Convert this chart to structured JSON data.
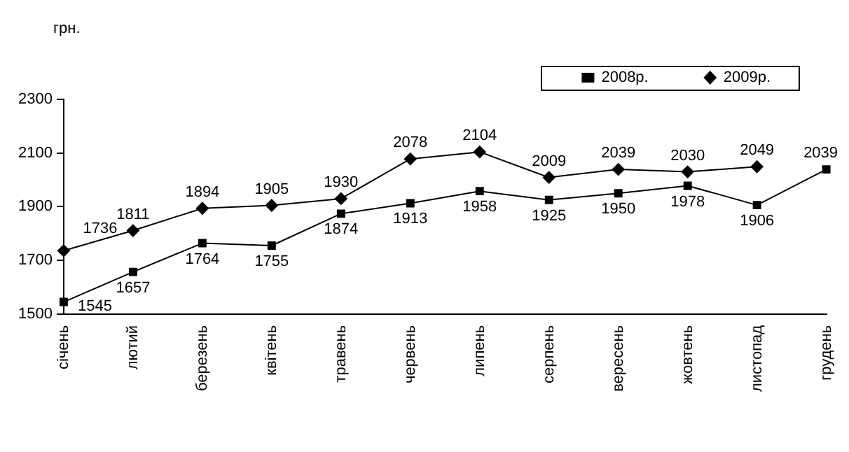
{
  "chart_data": {
    "type": "line",
    "ylabel": "грн.",
    "categories": [
      "січень",
      "лютий",
      "березень",
      "квітень",
      "травень",
      "червень",
      "липень",
      "серпень",
      "вересень",
      "жовтень",
      "листопад",
      "грудень"
    ],
    "series": [
      {
        "name": "2008р.",
        "color": "#000000",
        "marker": "square",
        "values": [
          1545,
          1657,
          1764,
          1755,
          1874,
          1913,
          1958,
          1925,
          1950,
          1978,
          1906,
          2039
        ]
      },
      {
        "name": "2009р.",
        "color": "#000000",
        "marker": "diamond",
        "values": [
          1736,
          1811,
          1894,
          1905,
          1930,
          2078,
          2104,
          2009,
          2039,
          2030,
          2049,
          null
        ]
      }
    ],
    "ylim": [
      1500,
      2300
    ],
    "yticks": [
      1500,
      1700,
      1900,
      2100,
      2300
    ],
    "grid": false,
    "legend": "top right",
    "data_labels": true,
    "line_style": "solid"
  }
}
